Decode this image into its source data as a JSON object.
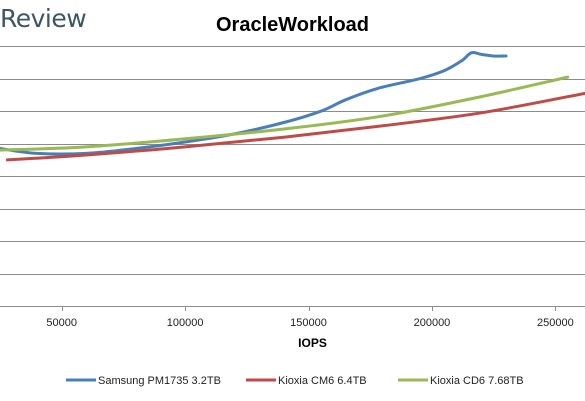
{
  "brand": "Review",
  "chart_data": {
    "type": "line",
    "title": "OracleWorkload",
    "xlabel": "IOPS",
    "ylabel": "",
    "xlim": [
      25000,
      262000
    ],
    "ylim": [
      0,
      8.5
    ],
    "xticks": [
      50000,
      100000,
      150000,
      200000,
      250000
    ],
    "xtick_labels": [
      "50000",
      "100000",
      "150000",
      "200000",
      "250000"
    ],
    "y_gridlines": [
      1,
      2,
      3,
      4,
      5,
      6,
      7,
      8
    ],
    "grid": true,
    "legend_position": "bottom",
    "series": [
      {
        "name": "Samsung PM1735 3.2TB",
        "color": "#4a7ebb",
        "x": [
          25000,
          40000,
          60000,
          80000,
          100000,
          120000,
          140000,
          155000,
          165000,
          178000,
          195000,
          205000,
          212000,
          216000,
          220000,
          225000,
          230000
        ],
        "y": [
          4.85,
          4.7,
          4.7,
          4.85,
          5.05,
          5.3,
          5.65,
          6.0,
          6.35,
          6.7,
          7.0,
          7.25,
          7.55,
          7.8,
          7.75,
          7.7,
          7.7
        ]
      },
      {
        "name": "Kioxia CM6 6.4TB",
        "color": "#be4b48",
        "x": [
          28000,
          60000,
          100000,
          140000,
          180000,
          220000,
          262000
        ],
        "y": [
          4.5,
          4.65,
          4.9,
          5.2,
          5.55,
          5.95,
          6.55
        ]
      },
      {
        "name": "Kioxia CD6 7.68TB",
        "color": "#98b954",
        "x": [
          25000,
          60000,
          100000,
          140000,
          180000,
          220000,
          255000
        ],
        "y": [
          4.8,
          4.9,
          5.15,
          5.45,
          5.85,
          6.45,
          7.05
        ]
      }
    ]
  }
}
